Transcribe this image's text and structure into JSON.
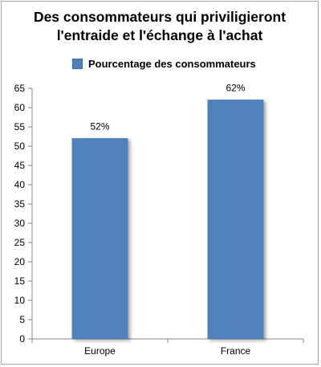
{
  "chart_data": {
    "type": "bar",
    "title": [
      "Des consommateurs qui priviligieront",
      "l'entraide et l'échange à l'achat"
    ],
    "categories": [
      "Europe",
      "France"
    ],
    "series": [
      {
        "name": "Pourcentage des consommateurs",
        "values": [
          52,
          62
        ],
        "color": "#4f81bd"
      }
    ],
    "data_labels": [
      "52%",
      "62%"
    ],
    "ylim": [
      0,
      65
    ],
    "yticks": [
      0,
      5,
      10,
      15,
      20,
      25,
      30,
      35,
      40,
      45,
      50,
      55,
      60,
      65
    ],
    "grid": false,
    "legend_position": "top"
  }
}
